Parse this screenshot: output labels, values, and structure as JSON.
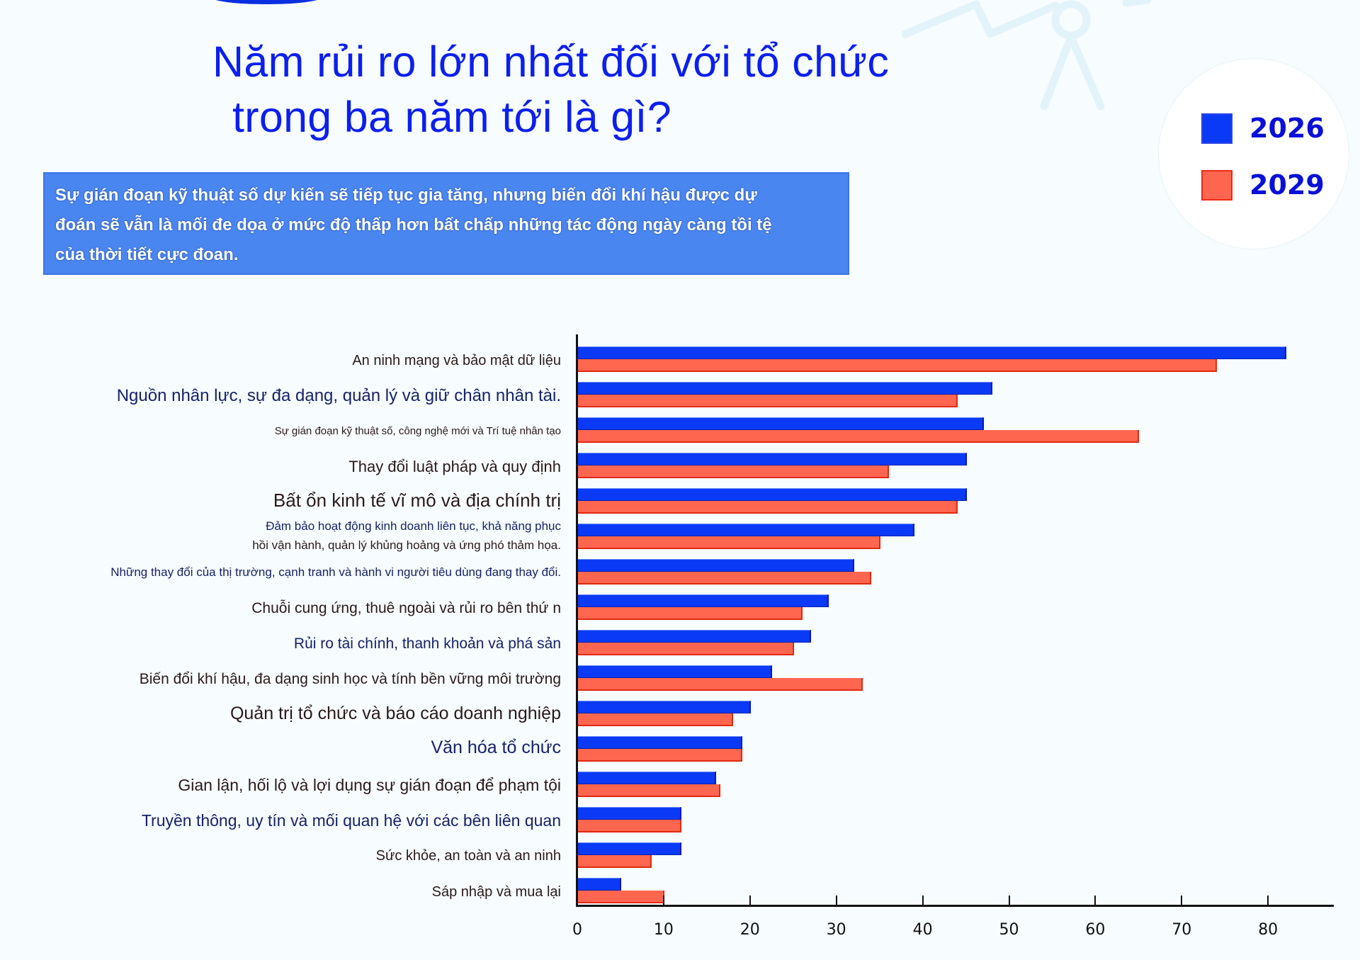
{
  "header": {
    "title_line1": "Năm rủi ro lớn nhất đối với tổ chức",
    "title_line2": "trong ba năm tới là gì?"
  },
  "info_box": {
    "text": "Sự gián đoạn kỹ thuật số dự kiến sẽ tiếp tục gia tăng, nhưng biến đổi khí hậu được dự đoán sẽ vẫn là mối đe dọa ở mức độ thấp hơn bất chấp những tác động ngày càng tồi tệ của thời tiết cực đoan."
  },
  "legend": {
    "items": [
      {
        "label": "2026",
        "color": "#0a3af5"
      },
      {
        "label": "2029",
        "color": "#ff6650"
      }
    ]
  },
  "colors": {
    "title": "#0b1ff0",
    "series_2026": "#0a3af5",
    "series_2029": "#ff6650",
    "info_box_bg": "#4a86f0"
  },
  "chart_data": {
    "type": "bar",
    "orientation": "horizontal",
    "title": "Năm rủi ro lớn nhất đối với tổ chức trong ba năm tới là gì?",
    "xlabel": "",
    "ylabel": "",
    "xlim": [
      0,
      88
    ],
    "x_ticks": [
      0,
      10,
      20,
      30,
      40,
      50,
      60,
      70,
      80
    ],
    "grid": false,
    "legend_position": "top-right",
    "categories": [
      "An ninh mạng và bảo mật dữ liệu",
      "Nguồn nhân lực, sự đa dạng, quản lý và giữ chân nhân tài.",
      "Sự gián đoạn kỹ thuật số, công nghệ mới và Trí tuệ nhân tạo",
      "Thay đổi luật pháp và quy định",
      "Bất ổn kinh tế vĩ mô và địa chính trị",
      "Đảm bảo hoạt động kinh doanh liên tục, khả năng phục hồi vận hành, quản lý khủng hoảng và ứng phó thảm họa.",
      "Những thay đổi của thị trường, cạnh tranh và hành vi người tiêu dùng đang thay đổi.",
      "Chuỗi cung ứng, thuê ngoài và rủi ro bên thứ n",
      "Rủi ro tài chính, thanh khoản và phá sản",
      "Biến đổi khí hậu, đa dạng sinh học và tính bền vững môi trường",
      "Quản trị tổ chức và báo cáo doanh nghiệp",
      "Văn hóa tổ chức",
      "Gian lận, hối lộ và lợi dụng sự gián đoạn để phạm tội",
      "Truyền thông, uy tín và mối quan hệ với các bên liên quan",
      "Sức khỏe, an toàn và an ninh",
      "Sáp nhập và mua lại"
    ],
    "series": [
      {
        "name": "2026",
        "values": [
          82,
          48,
          47,
          45,
          45,
          39,
          32,
          29,
          27,
          22.5,
          20,
          19,
          16,
          12,
          12,
          5
        ]
      },
      {
        "name": "2029",
        "values": [
          74,
          44,
          65,
          36,
          44,
          35,
          34,
          26,
          25,
          33,
          18,
          19,
          16.5,
          12,
          8.5,
          10
        ]
      }
    ]
  },
  "rows": [
    {
      "lines": [
        "An ninh mạng và bảo mật dữ liệu"
      ],
      "v26": 82,
      "v29": 74
    },
    {
      "lines": [
        "Nguồn nhân lực, sự đa dạng, quản lý và giữ chân nhân tài."
      ],
      "v26": 48,
      "v29": 44
    },
    {
      "lines": [
        "Sự gián đoạn kỹ thuật số, công nghệ mới và Trí tuệ nhân tạo"
      ],
      "v26": 47,
      "v29": 65
    },
    {
      "lines": [
        "Thay đổi luật pháp và quy định"
      ],
      "v26": 45,
      "v29": 36
    },
    {
      "lines": [
        "Bất ổn kinh tế vĩ mô và địa chính trị"
      ],
      "v26": 45,
      "v29": 44
    },
    {
      "lines": [
        "Đảm bảo hoạt động kinh doanh liên tục, khả năng phục",
        "hồi vận hành, quản lý khủng hoảng và ứng phó thảm họa."
      ],
      "v26": 39,
      "v29": 35
    },
    {
      "lines": [
        "Những thay đổi của thị trường, cạnh tranh và hành vi người tiêu dùng đang thay đổi."
      ],
      "v26": 32,
      "v29": 34
    },
    {
      "lines": [
        "Chuỗi cung ứng, thuê ngoài và rủi ro bên thứ n"
      ],
      "v26": 29,
      "v29": 26
    },
    {
      "lines": [
        "Rủi ro tài chính, thanh khoản và phá sản"
      ],
      "v26": 27,
      "v29": 25
    },
    {
      "lines": [
        "Biến đổi khí hậu, đa dạng sinh học và tính bền vững môi trường"
      ],
      "v26": 22.5,
      "v29": 33
    },
    {
      "lines": [
        "Quản trị tổ chức và báo cáo doanh nghiệp"
      ],
      "v26": 20,
      "v29": 18
    },
    {
      "lines": [
        "Văn hóa tổ chức"
      ],
      "v26": 19,
      "v29": 19
    },
    {
      "lines": [
        "Gian lận, hối lộ và lợi dụng sự gián đoạn để phạm tội"
      ],
      "v26": 16,
      "v29": 16.5
    },
    {
      "lines": [
        "Truyền thông, uy tín và mối quan hệ với các bên liên quan"
      ],
      "v26": 12,
      "v29": 12
    },
    {
      "lines": [
        "Sức khỏe, an toàn và an ninh"
      ],
      "v26": 12,
      "v29": 8.5
    },
    {
      "lines": [
        "Sáp nhập và mua lại"
      ],
      "v26": 5,
      "v29": 10
    }
  ],
  "x_axis": {
    "ticks": [
      "0",
      "10",
      "20",
      "30",
      "40",
      "50",
      "60",
      "70",
      "80"
    ]
  }
}
